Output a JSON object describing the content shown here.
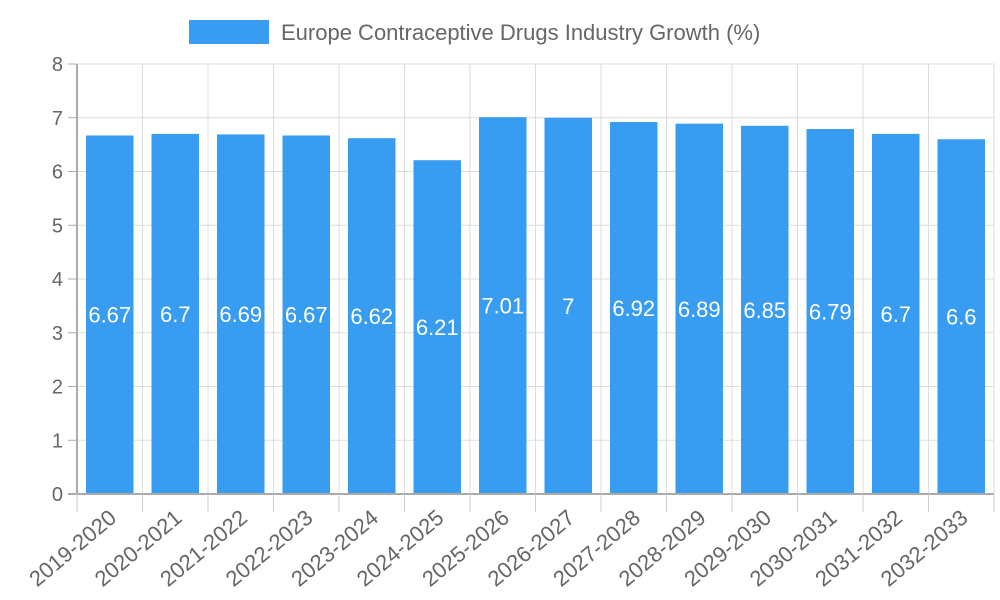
{
  "chart_data": {
    "type": "bar",
    "title": "",
    "legend": {
      "label": "Europe Contraceptive Drugs Industry Growth (%)",
      "placement": "top"
    },
    "categories": [
      "2019-2020",
      "2020-2021",
      "2021-2022",
      "2022-2023",
      "2023-2024",
      "2024-2025",
      "2025-2026",
      "2026-2027",
      "2027-2028",
      "2028-2029",
      "2029-2030",
      "2030-2031",
      "2031-2032",
      "2032-2033"
    ],
    "series": [
      {
        "name": "Europe Contraceptive Drugs Industry Growth (%)",
        "values": [
          6.67,
          6.7,
          6.69,
          6.67,
          6.62,
          6.21,
          7.01,
          7,
          6.92,
          6.89,
          6.85,
          6.79,
          6.7,
          6.6
        ],
        "color": "#389cf0"
      }
    ],
    "xlabel": "",
    "ylabel": "",
    "ylim": [
      0,
      8
    ],
    "yticks": [
      0,
      1,
      2,
      3,
      4,
      5,
      6,
      7,
      8
    ],
    "grid": true
  }
}
